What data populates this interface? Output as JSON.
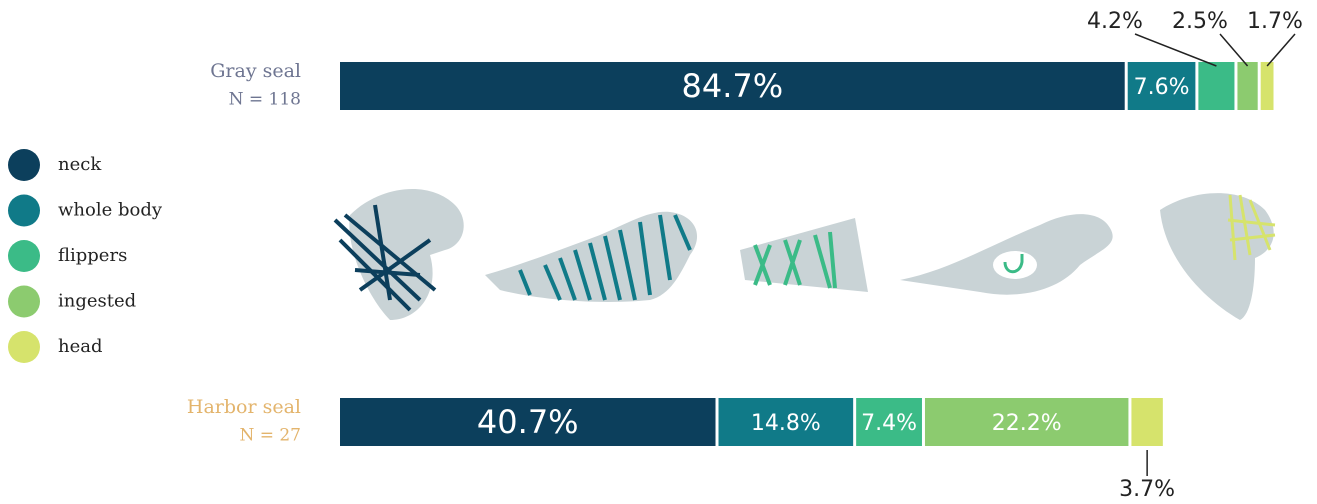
{
  "chart_data": {
    "type": "stacked-bar-horizontal",
    "categories": [
      "Gray seal",
      "Harbor seal"
    ],
    "category_notes": [
      "N = 118",
      "N = 27"
    ],
    "category_colors": [
      "#6e7591",
      "#e3b46c"
    ],
    "xlim": [
      0,
      100
    ],
    "series": [
      {
        "name": "neck",
        "color": "#0c3f5c",
        "values": [
          84.7,
          40.7
        ],
        "value_labels": [
          "84.7%",
          "40.7%"
        ]
      },
      {
        "name": "whole body",
        "color": "#107a88",
        "values": [
          7.6,
          14.8
        ],
        "value_labels": [
          "7.6%",
          "14.8%"
        ]
      },
      {
        "name": "flippers",
        "color": "#3bbb87",
        "values": [
          4.2,
          7.4
        ],
        "value_labels": [
          "4.2%",
          "7.4%"
        ]
      },
      {
        "name": "ingested",
        "color": "#8ccb6f",
        "values": [
          2.5,
          22.2
        ],
        "value_labels": [
          "2.5%",
          "22.2%"
        ]
      },
      {
        "name": "head",
        "color": "#d6e36c",
        "values": [
          1.7,
          3.7
        ],
        "value_labels": [
          "1.7%",
          "3.7%"
        ]
      }
    ]
  }
}
